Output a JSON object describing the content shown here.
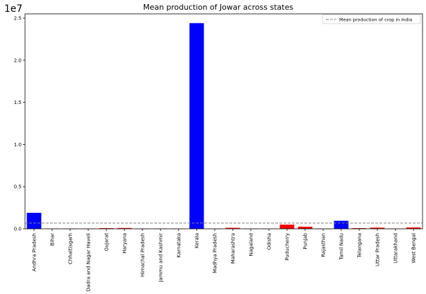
{
  "chart_data": {
    "type": "bar",
    "title": "Mean production of Jowar across states",
    "xlabel": "",
    "ylabel": "",
    "y_offset_label": "1e7",
    "ylim": [
      0,
      2.55
    ],
    "yticks": [
      0.0,
      0.5,
      1.0,
      1.5,
      2.0,
      2.5
    ],
    "ytick_labels": [
      "0.0",
      "0.5",
      "1.0",
      "1.5",
      "2.0",
      "2.5"
    ],
    "categories": [
      "Andhra Pradesh",
      "Bihar",
      "Chhattisgarh",
      "Dadra and Nagar Haveli",
      "Gujarat",
      "Haryana",
      "Himachal Pradesh",
      "Jammu and Kashmir",
      "Karnataka",
      "Kerala",
      "Madhya Pradesh",
      "Maharashtra",
      "Nagaland",
      "Odisha",
      "Puducherry",
      "Punjab",
      "Rajasthan",
      "Tamil Nadu",
      "Telangana",
      "Uttar Pradesh",
      "Uttarakhand",
      "West Bengal"
    ],
    "values": [
      0.19,
      0.004,
      0.002,
      0.001,
      0.008,
      0.01,
      0.002,
      0.004,
      0.002,
      2.44,
      0.003,
      0.012,
      0.002,
      0.004,
      0.05,
      0.025,
      0.002,
      0.095,
      0.008,
      0.014,
      0.002,
      0.016
    ],
    "colors": [
      "#0000ff",
      "#ff0000",
      "#ff0000",
      "#ff0000",
      "#ff0000",
      "#ff0000",
      "#ff0000",
      "#ff0000",
      "#ff0000",
      "#0000ff",
      "#ff0000",
      "#ff0000",
      "#ff0000",
      "#ff0000",
      "#ff0000",
      "#ff0000",
      "#ff0000",
      "#0000ff",
      "#ff0000",
      "#ff0000",
      "#ff0000",
      "#ff0000"
    ],
    "reference_line": {
      "value": 0.068,
      "label": "Mean production of crop in India",
      "style": "dashed",
      "color": "#808080"
    },
    "legend_position": "top-right",
    "grid": false
  }
}
